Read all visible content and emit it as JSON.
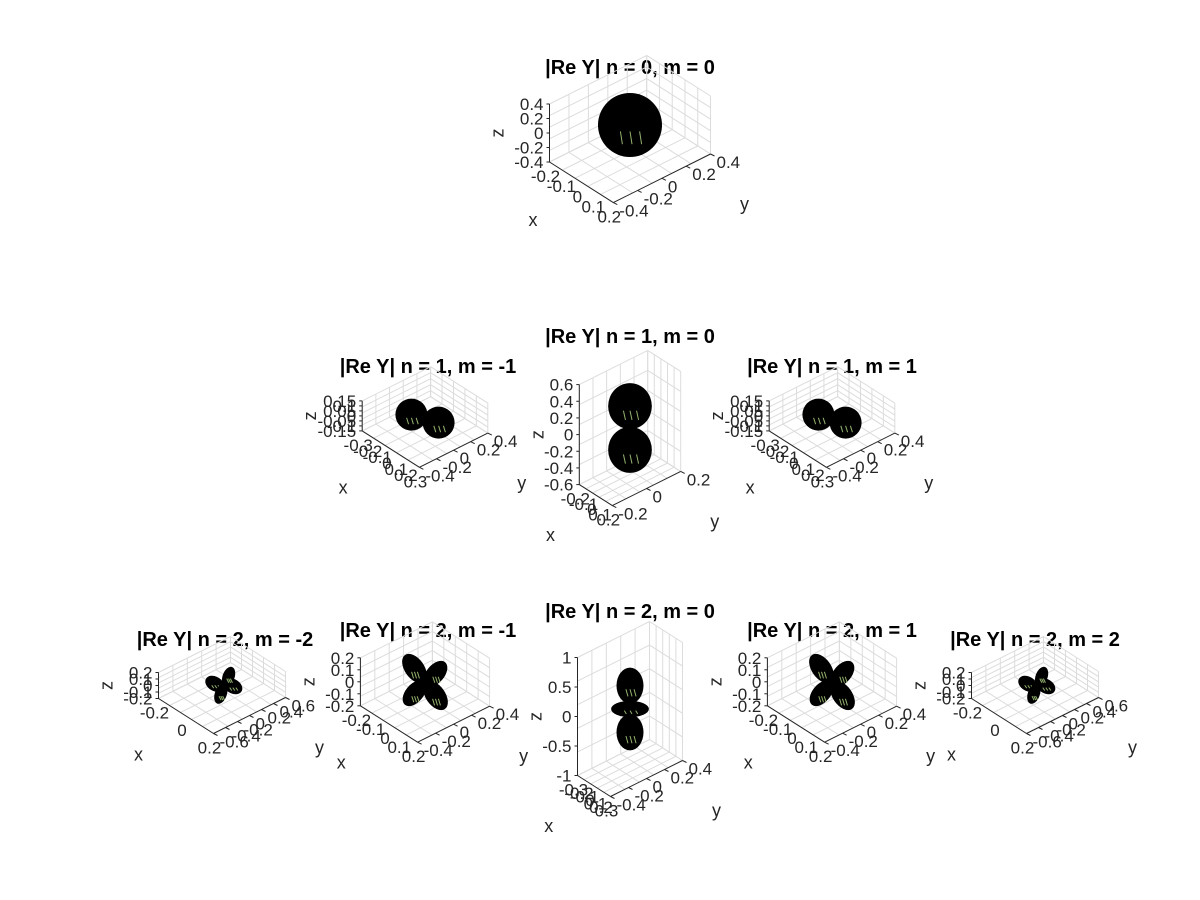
{
  "chart_data": [
    {
      "type": "surface",
      "title": "|Re Y| n = 0, m = 0",
      "n": 0,
      "m": 0,
      "xlabel": "x",
      "ylabel": "y",
      "zlabel": "z",
      "xticks": [
        "-0.2",
        "-0.1",
        "0",
        "0.1",
        "0.2"
      ],
      "yticks": [
        "-0.4",
        "-0.2",
        "0",
        "0.2",
        "0.4"
      ],
      "zticks": [
        "0.4",
        "0.2",
        "0",
        "-0.2",
        "-0.4"
      ]
    },
    {
      "type": "surface",
      "title": "|Re Y| n = 1, m = -1",
      "n": 1,
      "m": -1,
      "xlabel": "x",
      "ylabel": "y",
      "zlabel": "z",
      "xticks": [
        "-0.3",
        "-0.2",
        "-0.1",
        "0",
        "0.1",
        "0.2",
        "0.3"
      ],
      "yticks": [
        "-0.4",
        "-0.2",
        "0",
        "0.2",
        "0.4"
      ],
      "zticks": [
        "0.15",
        "0.1",
        "0.05",
        "0",
        "-0.05",
        "-0.1",
        "-0.15"
      ]
    },
    {
      "type": "surface",
      "title": "|Re Y| n = 1, m = 0",
      "n": 1,
      "m": 0,
      "xlabel": "x",
      "ylabel": "y",
      "zlabel": "z",
      "xticks": [
        "-0.2",
        "-0.1",
        "0",
        "0.1",
        "0.2"
      ],
      "yticks": [
        "-0.2",
        "0",
        "0.2"
      ],
      "zticks": [
        "0.6",
        "0.4",
        "0.2",
        "0",
        "-0.2",
        "-0.4",
        "-0.6"
      ]
    },
    {
      "type": "surface",
      "title": "|Re Y| n = 1, m = 1",
      "n": 1,
      "m": 1,
      "xlabel": "x",
      "ylabel": "y",
      "zlabel": "z",
      "xticks": [
        "-0.3",
        "-0.2",
        "-0.1",
        "0",
        "0.1",
        "0.2",
        "0.3"
      ],
      "yticks": [
        "-0.4",
        "-0.2",
        "0",
        "0.2",
        "0.4"
      ],
      "zticks": [
        "0.15",
        "0.1",
        "0.05",
        "0",
        "-0.05",
        "-0.1",
        "-0.15"
      ]
    },
    {
      "type": "surface",
      "title": "|Re Y| n = 2, m = -2",
      "n": 2,
      "m": -2,
      "xlabel": "x",
      "ylabel": "y",
      "zlabel": "z",
      "xticks": [
        "-0.2",
        "0",
        "0.2"
      ],
      "yticks": [
        "-0.6",
        "-0.4",
        "-0.2",
        "0",
        "0.2",
        "0.4",
        "0.6"
      ],
      "zticks": [
        "0.2",
        "0.1",
        "0",
        "-0.1",
        "-0.2"
      ]
    },
    {
      "type": "surface",
      "title": "|Re Y| n = 2, m = -1",
      "n": 2,
      "m": -1,
      "xlabel": "x",
      "ylabel": "y",
      "zlabel": "z",
      "xticks": [
        "-0.2",
        "-0.1",
        "0",
        "0.1",
        "0.2"
      ],
      "yticks": [
        "-0.4",
        "-0.2",
        "0",
        "0.2",
        "0.4"
      ],
      "zticks": [
        "0.2",
        "0.1",
        "0",
        "-0.1",
        "-0.2"
      ]
    },
    {
      "type": "surface",
      "title": "|Re Y| n = 2, m = 0",
      "n": 2,
      "m": 0,
      "xlabel": "x",
      "ylabel": "y",
      "zlabel": "z",
      "xticks": [
        "-0.3",
        "-0.2",
        "-0.1",
        "0",
        "0.1",
        "0.2",
        "0.3"
      ],
      "yticks": [
        "-0.4",
        "-0.2",
        "0",
        "0.2",
        "0.4"
      ],
      "zticks": [
        "1",
        "0.5",
        "0",
        "-0.5",
        "-1"
      ]
    },
    {
      "type": "surface",
      "title": "|Re Y| n = 2, m = 1",
      "n": 2,
      "m": 1,
      "xlabel": "x",
      "ylabel": "y",
      "zlabel": "z",
      "xticks": [
        "-0.2",
        "-0.1",
        "0",
        "0.1",
        "0.2"
      ],
      "yticks": [
        "-0.4",
        "-0.2",
        "0",
        "0.2",
        "0.4"
      ],
      "zticks": [
        "0.2",
        "0.1",
        "0",
        "-0.1",
        "-0.2"
      ]
    },
    {
      "type": "surface",
      "title": "|Re Y| n = 2, m = 2",
      "n": 2,
      "m": 2,
      "xlabel": "x",
      "ylabel": "y",
      "zlabel": "z",
      "xticks": [
        "-0.2",
        "0",
        "0.2"
      ],
      "yticks": [
        "-0.6",
        "-0.4",
        "-0.2",
        "0",
        "0.2",
        "0.4",
        "0.6"
      ],
      "zticks": [
        "0.2",
        "0.1",
        "0",
        "-0.1",
        "-0.2"
      ]
    }
  ],
  "colors": {
    "surface": "#000000",
    "highlight": "#b9e08a",
    "grid": "#dcdcdc",
    "text": "#262626"
  }
}
